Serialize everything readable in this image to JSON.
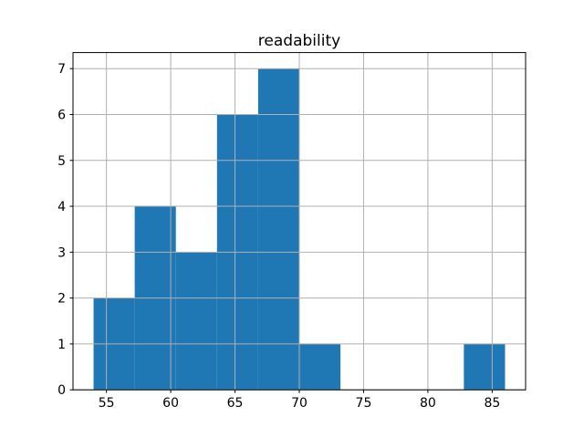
{
  "figure": {
    "background": "#ffffff"
  },
  "chart_data": {
    "type": "bar",
    "subtype": "histogram",
    "title": "readability",
    "xlabel": "",
    "ylabel": "",
    "bin_edges": [
      54,
      57.2,
      60.4,
      63.6,
      66.8,
      70,
      73.2,
      76.4,
      79.6,
      82.8,
      86
    ],
    "counts": [
      2,
      4,
      3,
      6,
      7,
      1,
      0,
      0,
      0,
      1
    ],
    "xlim": [
      52.4,
      87.6
    ],
    "ylim": [
      0,
      7.35
    ],
    "xticks": [
      55,
      60,
      65,
      70,
      75,
      80,
      85
    ],
    "yticks": [
      0,
      1,
      2,
      3,
      4,
      5,
      6,
      7
    ],
    "grid": true,
    "grid_on_top_of_bars": true,
    "legend": "none",
    "bar_color": "#1f77b4",
    "grid_color": "#b0b0b0",
    "spine_color": "#000000",
    "text_color": "#000000"
  }
}
